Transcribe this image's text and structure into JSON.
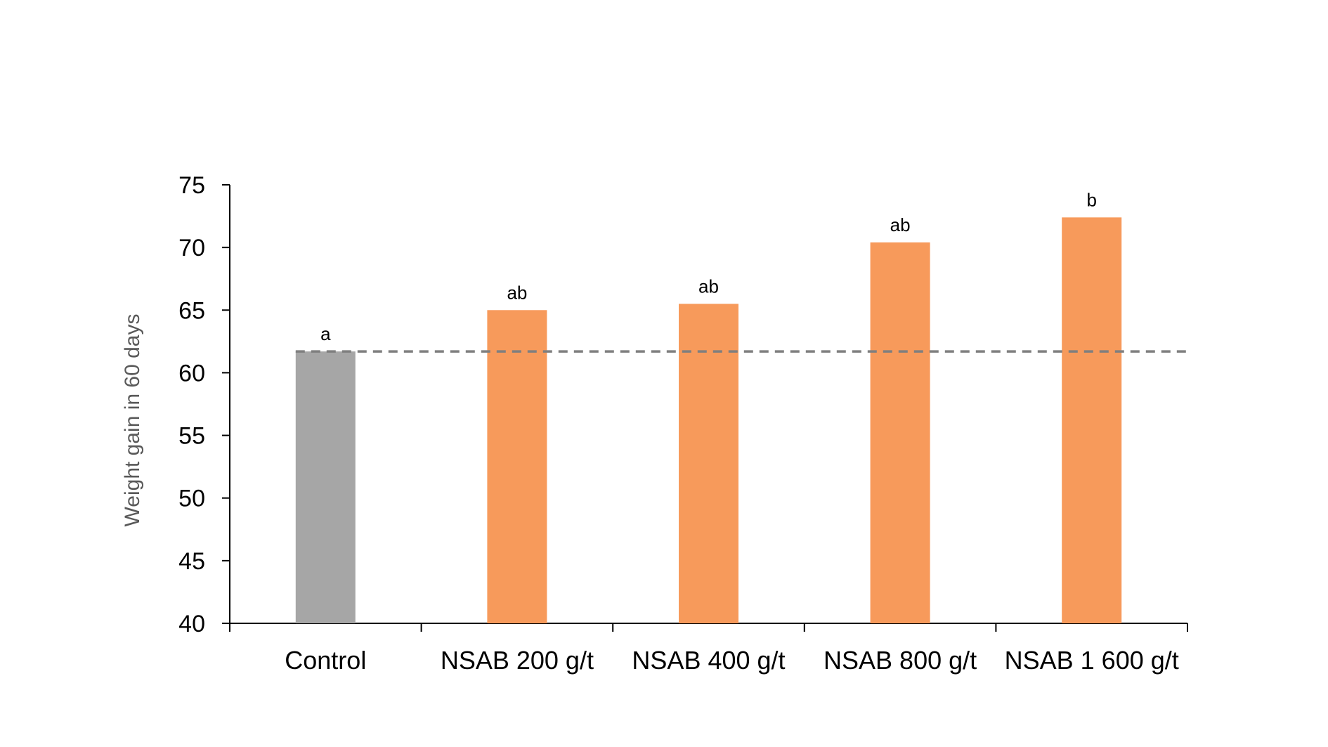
{
  "chart_data": {
    "type": "bar",
    "title": "",
    "xlabel": "",
    "ylabel": "Weight gain in 60 days",
    "ylim": [
      40,
      75
    ],
    "yticks": [
      40,
      45,
      50,
      55,
      60,
      65,
      70,
      75
    ],
    "categories": [
      "Control",
      "NSAB 200 g/t",
      "NSAB 400 g/t",
      "NSAB 800 g/t",
      "NSAB 1 600 g/t"
    ],
    "values": [
      61.7,
      65.0,
      65.5,
      70.4,
      72.4
    ],
    "significance_labels": [
      "a",
      "ab",
      "ab",
      "ab",
      "b"
    ],
    "bar_colors": [
      "#a6a6a6",
      "#f79a5b",
      "#f79a5b",
      "#f79a5b",
      "#f79a5b"
    ],
    "reference_line": {
      "value": 61.7,
      "style": "dashed",
      "color": "#7f7f7f"
    },
    "grid": false,
    "legend": "none"
  }
}
